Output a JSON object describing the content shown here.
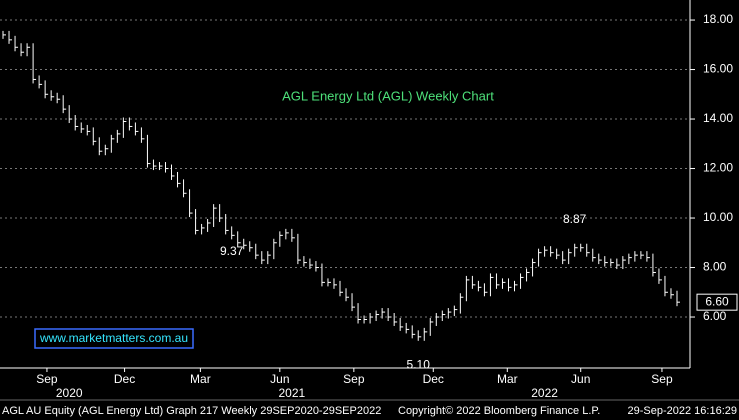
{
  "chart_data": {
    "type": "price",
    "title": "AGL Energy Ltd (AGL) Weekly Chart",
    "watermark": "www.marketmatters.com.au",
    "last_price": {
      "value": 6.6,
      "label": "6.60"
    },
    "annotations": [
      {
        "value": 9.37,
        "label": "9.37",
        "index": 38
      },
      {
        "value": 8.87,
        "label": "8.87",
        "index": 95
      },
      {
        "value": 5.1,
        "label": "5.10",
        "index": 69
      }
    ],
    "color": "#ffffff",
    "values": [
      17.4,
      17.2,
      16.9,
      16.7,
      16.9,
      15.6,
      15.4,
      15.0,
      14.9,
      14.8,
      14.4,
      14.0,
      13.7,
      13.6,
      13.5,
      13.1,
      12.7,
      12.8,
      13.2,
      13.4,
      13.9,
      13.7,
      13.5,
      13.2,
      12.2,
      12.1,
      12.1,
      12.0,
      11.7,
      11.4,
      11.0,
      10.2,
      9.5,
      9.6,
      9.8,
      10.4,
      10.0,
      9.5,
      9.3,
      9.0,
      8.9,
      8.8,
      8.5,
      8.3,
      8.5,
      9.0,
      9.3,
      9.4,
      9.2,
      8.3,
      8.2,
      8.1,
      8.0,
      7.4,
      7.4,
      7.3,
      7.0,
      6.8,
      6.4,
      5.9,
      5.9,
      6.0,
      6.1,
      6.2,
      6.0,
      5.8,
      5.6,
      5.5,
      5.3,
      5.2,
      5.4,
      5.8,
      6.0,
      6.1,
      6.2,
      6.3,
      6.8,
      7.5,
      7.3,
      7.2,
      7.0,
      7.6,
      7.3,
      7.4,
      7.2,
      7.3,
      7.6,
      7.8,
      8.2,
      8.6,
      8.7,
      8.6,
      8.5,
      8.3,
      8.6,
      8.8,
      8.8,
      8.6,
      8.4,
      8.3,
      8.2,
      8.2,
      8.1,
      8.3,
      8.4,
      8.5,
      8.5,
      8.4,
      7.8,
      7.5,
      7.0,
      6.9,
      6.6
    ],
    "xlim": [
      -0.5,
      112.5
    ],
    "xticks": [
      {
        "value": 7.3,
        "label": "Sep"
      },
      {
        "value": 20.2,
        "label": "Dec"
      },
      {
        "value": 32.8,
        "label": "Mar"
      },
      {
        "value": 46,
        "label": "Jun"
      },
      {
        "value": 58.3,
        "label": "Sep"
      },
      {
        "value": 71.5,
        "label": "Dec"
      },
      {
        "value": 83.8,
        "label": "Mar"
      },
      {
        "value": 96,
        "label": "Jun"
      },
      {
        "value": 109.5,
        "label": "Sep"
      }
    ],
    "year_labels": [
      {
        "value": 11,
        "label": "2020"
      },
      {
        "value": 48,
        "label": "2021"
      },
      {
        "value": 90,
        "label": "2022"
      }
    ],
    "ylim": [
      3.94,
      18.81
    ],
    "yticks": [
      {
        "value": 6,
        "label": "6.00"
      },
      {
        "value": 8,
        "label": "8.00"
      },
      {
        "value": 10,
        "label": "10.00"
      },
      {
        "value": 12,
        "label": "12.00"
      },
      {
        "value": 14,
        "label": "14.00"
      },
      {
        "value": 16,
        "label": "16.00"
      },
      {
        "value": 18,
        "label": "18.00"
      }
    ],
    "grid": true,
    "footer": {
      "left": "AGL AU Equity (AGL Energy Ltd) Graph 217  Weekly 29SEP2020-29SEP2022",
      "center": "Copyright© 2022 Bloomberg Finance L.P.",
      "right": "29-Sep-2022 16:16:29"
    }
  }
}
